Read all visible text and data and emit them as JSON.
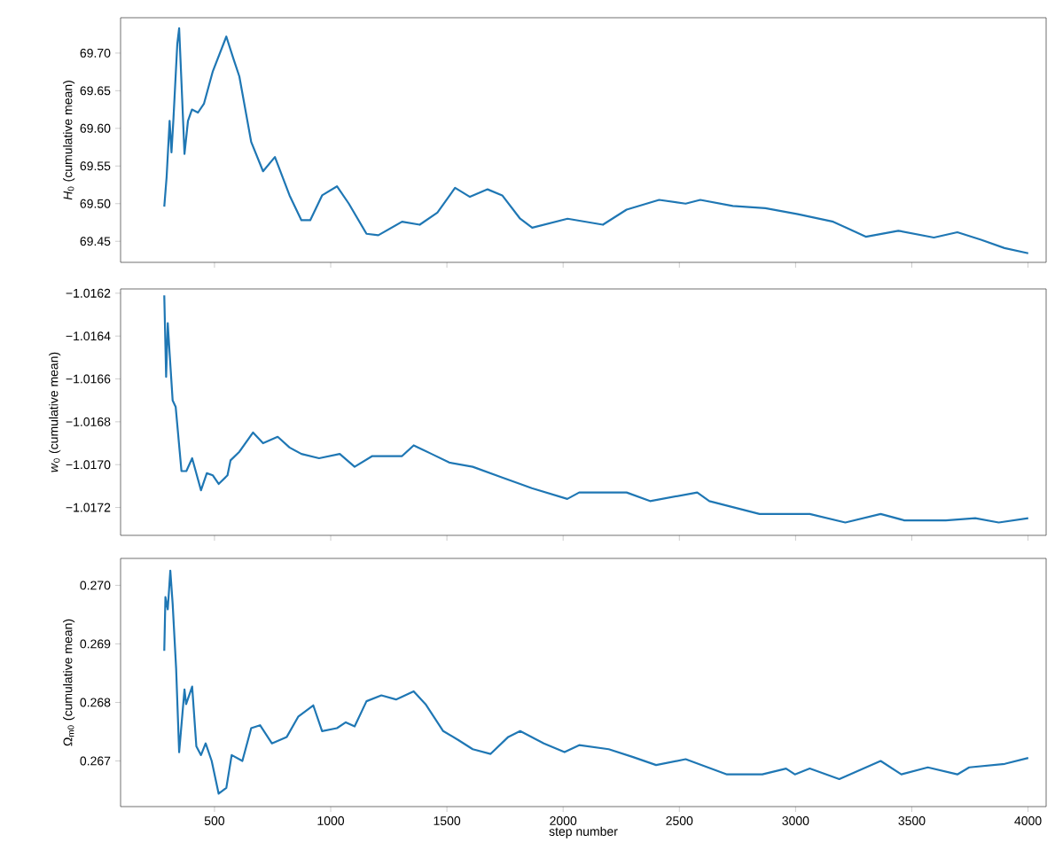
{
  "chart_data": [
    {
      "type": "line",
      "color": "#1f77b4",
      "ylabel": "*H*$_{0}$ (cumulative mean)",
      "tick_labels": "y",
      "xlim": [
        96,
        4078
      ],
      "ylim": [
        69.422,
        69.747
      ],
      "xticks": [
        500,
        1000,
        1500,
        2000,
        2500,
        3000,
        3500,
        4000
      ],
      "yticks": [
        {
          "value": 69.45,
          "label": "69.45"
        },
        {
          "value": 69.5,
          "label": "69.50"
        },
        {
          "value": 69.55,
          "label": "69.55"
        },
        {
          "value": 69.6,
          "label": "69.60"
        },
        {
          "value": 69.65,
          "label": "69.65"
        },
        {
          "value": 69.7,
          "label": "69.70"
        }
      ],
      "x": [
        284,
        294,
        307,
        315,
        323,
        340,
        348,
        358,
        371,
        386,
        403,
        429,
        455,
        493,
        551,
        582,
        607,
        658,
        709,
        760,
        823,
        874,
        912,
        963,
        1027,
        1078,
        1154,
        1205,
        1307,
        1383,
        1459,
        1535,
        1599,
        1675,
        1738,
        1815,
        1867,
        2019,
        2171,
        2273,
        2413,
        2527,
        2590,
        2730,
        2870,
        3010,
        3162,
        3302,
        3442,
        3595,
        3696,
        3798,
        3899,
        4001
      ],
      "values": [
        69.496,
        69.535,
        69.61,
        69.568,
        69.61,
        69.712,
        69.733,
        69.661,
        69.566,
        69.61,
        69.625,
        69.621,
        69.633,
        69.676,
        69.722,
        69.692,
        69.669,
        69.582,
        69.543,
        69.562,
        69.511,
        69.478,
        69.478,
        69.511,
        69.523,
        69.5,
        69.46,
        69.458,
        69.476,
        69.472,
        69.488,
        69.521,
        69.509,
        69.519,
        69.511,
        69.48,
        69.468,
        69.48,
        69.472,
        69.492,
        69.505,
        69.5,
        69.505,
        69.497,
        69.494,
        69.486,
        69.476,
        69.456,
        69.464,
        69.455,
        69.462,
        69.452,
        69.441,
        69.434
      ]
    },
    {
      "type": "line",
      "color": "#1f77b4",
      "ylabel": "*w*$_{0}$ (cumulative mean)",
      "tick_labels": "y",
      "xlim": [
        96,
        4078
      ],
      "ylim": [
        -1.01733,
        -1.01618
      ],
      "xticks": [
        500,
        1000,
        1500,
        2000,
        2500,
        3000,
        3500,
        4000
      ],
      "yticks": [
        {
          "value": -1.0172,
          "label": "−1.0172"
        },
        {
          "value": -1.017,
          "label": "−1.0170"
        },
        {
          "value": -1.0168,
          "label": "−1.0168"
        },
        {
          "value": -1.0166,
          "label": "−1.0166"
        },
        {
          "value": -1.0164,
          "label": "−1.0164"
        },
        {
          "value": -1.0162,
          "label": "−1.0162"
        }
      ],
      "x": [
        284,
        292,
        299,
        307,
        320,
        333,
        358,
        379,
        404,
        442,
        467,
        493,
        518,
        556,
        569,
        607,
        666,
        709,
        772,
        823,
        874,
        950,
        1039,
        1103,
        1179,
        1307,
        1357,
        1434,
        1510,
        1611,
        1738,
        1815,
        1865,
        2018,
        2069,
        2273,
        2374,
        2577,
        2629,
        2845,
        3061,
        3214,
        3366,
        3468,
        3646,
        3773,
        3874,
        4001
      ],
      "values": [
        -1.01621,
        -1.01659,
        -1.01634,
        -1.01648,
        -1.0167,
        -1.01673,
        -1.01703,
        -1.01703,
        -1.01697,
        -1.01712,
        -1.01704,
        -1.01705,
        -1.01709,
        -1.01705,
        -1.01698,
        -1.01694,
        -1.01685,
        -1.0169,
        -1.01687,
        -1.01692,
        -1.01695,
        -1.01697,
        -1.01695,
        -1.01701,
        -1.01696,
        -1.01696,
        -1.01691,
        -1.01695,
        -1.01699,
        -1.01701,
        -1.01706,
        -1.01709,
        -1.01711,
        -1.01716,
        -1.01713,
        -1.01713,
        -1.01717,
        -1.01713,
        -1.01717,
        -1.01723,
        -1.01723,
        -1.01727,
        -1.01723,
        -1.01726,
        -1.01726,
        -1.01725,
        -1.01727,
        -1.01725
      ]
    },
    {
      "type": "line",
      "color": "#1f77b4",
      "ylabel": "Ω$_{m0}$ (cumulative mean)",
      "xlabel": "step number",
      "xlim": [
        96,
        4078
      ],
      "ylim": [
        0.26622,
        0.27046
      ],
      "xticks": [
        500,
        1000,
        1500,
        2000,
        2500,
        3000,
        3500,
        4000
      ],
      "yticks": [
        {
          "value": 0.267,
          "label": "0.267"
        },
        {
          "value": 0.268,
          "label": "0.268"
        },
        {
          "value": 0.269,
          "label": "0.269"
        },
        {
          "value": 0.27,
          "label": "0.270"
        }
      ],
      "x": [
        284,
        289,
        299,
        310,
        320,
        335,
        348,
        371,
        378,
        404,
        422,
        442,
        462,
        488,
        518,
        551,
        574,
        620,
        658,
        696,
        747,
        811,
        861,
        925,
        963,
        1027,
        1065,
        1103,
        1154,
        1218,
        1281,
        1357,
        1408,
        1484,
        1548,
        1611,
        1688,
        1764,
        1815,
        1917,
        2006,
        2069,
        2196,
        2298,
        2400,
        2527,
        2705,
        2857,
        2959,
        2997,
        3061,
        3188,
        3366,
        3455,
        3569,
        3696,
        3747,
        3900,
        4001
      ],
      "values": [
        0.26888,
        0.2698,
        0.26959,
        0.27025,
        0.26969,
        0.26858,
        0.26715,
        0.26822,
        0.26797,
        0.26827,
        0.26725,
        0.2671,
        0.2673,
        0.267,
        0.26644,
        0.26654,
        0.2671,
        0.267,
        0.26756,
        0.26761,
        0.2673,
        0.26741,
        0.26776,
        0.26795,
        0.26751,
        0.26756,
        0.26766,
        0.26759,
        0.26802,
        0.26812,
        0.26805,
        0.26819,
        0.26797,
        0.26751,
        0.26736,
        0.2672,
        0.26712,
        0.26741,
        0.26751,
        0.2673,
        0.26715,
        0.26727,
        0.2672,
        0.26707,
        0.26693,
        0.26703,
        0.26677,
        0.26677,
        0.26687,
        0.26677,
        0.26687,
        0.26669,
        0.267,
        0.26677,
        0.26689,
        0.26677,
        0.26689,
        0.26695,
        0.26705
      ]
    }
  ]
}
